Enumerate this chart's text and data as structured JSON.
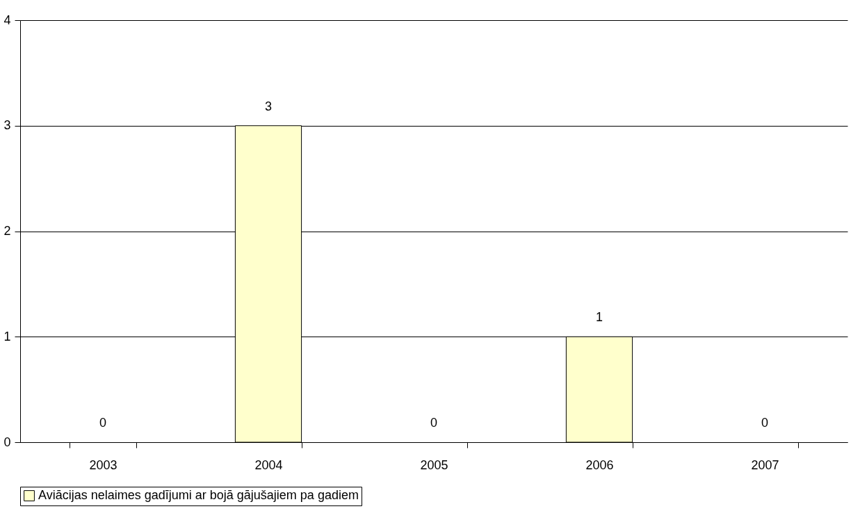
{
  "chart_data": {
    "type": "bar",
    "categories": [
      "2003",
      "2004",
      "2005",
      "2006",
      "2007"
    ],
    "series": [
      {
        "name": "Aviācijas nelaimes gadījumi ar bojā gājušajiem pa gadiem",
        "color": "#ffffcc",
        "values": [
          0,
          3,
          0,
          1,
          0
        ]
      }
    ],
    "ylim": [
      0,
      4
    ],
    "yticks": [
      0,
      1,
      2,
      3,
      4
    ],
    "grid": "y",
    "legend": "bottom",
    "data_labels": true
  }
}
